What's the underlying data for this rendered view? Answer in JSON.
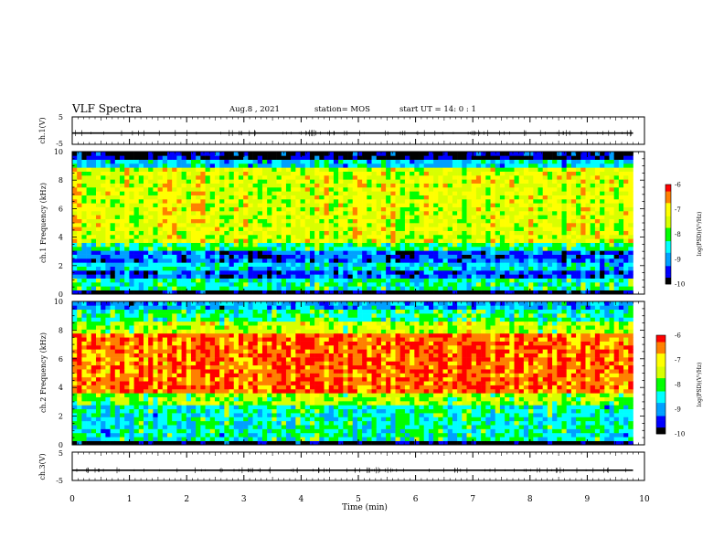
{
  "header": {
    "title": "VLF Spectra",
    "date": "Aug.8 , 2021",
    "station": "station= MOS",
    "start": "start UT =  14: 0 : 1"
  },
  "colors": {
    "colormap": [
      "#000000",
      "#0000ff",
      "#00a0ff",
      "#00ffff",
      "#00ff00",
      "#d8ff00",
      "#ffff00",
      "#ff8000",
      "#ff0000",
      "#ffffff"
    ],
    "axis": "#000000"
  },
  "chart_data": [
    {
      "type": "line",
      "name": "ch1-waveform",
      "ylabel": "ch.1(V)",
      "ylim": [
        -5,
        5
      ],
      "yticks": [
        "5",
        "-5"
      ],
      "trace_level": -0.9
    },
    {
      "type": "heatmap",
      "name": "ch1-spectrogram",
      "ylabel": "ch.1 Frequency (kHz)",
      "ylim": [
        0,
        10
      ],
      "yticks": [
        "0",
        "2",
        "4",
        "6",
        "8",
        "10"
      ],
      "xlim": [
        0,
        10
      ],
      "bands": [
        {
          "from": 0,
          "to": 0.4,
          "level": -10
        },
        {
          "from": 0.4,
          "to": 1.1,
          "level": -8.3
        },
        {
          "from": 1.1,
          "to": 1.8,
          "level": -9.3
        },
        {
          "from": 1.8,
          "to": 2.2,
          "level": -8.6
        },
        {
          "from": 2.2,
          "to": 3.0,
          "level": -9.2
        },
        {
          "from": 3.0,
          "to": 3.5,
          "level": -8.2
        },
        {
          "from": 3.5,
          "to": 9.0,
          "level": -7.3
        },
        {
          "from": 9.0,
          "to": 9.5,
          "level": -8.6
        },
        {
          "from": 9.5,
          "to": 10,
          "level": -9.8
        }
      ],
      "colorbar": {
        "label": "log(PSD)(V²/Hz)",
        "ticks": [
          "-6",
          "-7",
          "-8",
          "-9",
          "-10"
        ],
        "range": [
          -10,
          -6
        ]
      }
    },
    {
      "type": "heatmap",
      "name": "ch2-spectrogram",
      "ylabel": "ch.2 Frequency (kHz)",
      "ylim": [
        0,
        10
      ],
      "yticks": [
        "0",
        "2",
        "4",
        "6",
        "8",
        "10"
      ],
      "xlim": [
        0,
        10
      ],
      "bands": [
        {
          "from": 0,
          "to": 0.3,
          "level": -10
        },
        {
          "from": 0.3,
          "to": 2.8,
          "level": -8.4
        },
        {
          "from": 2.8,
          "to": 3.5,
          "level": -7.7
        },
        {
          "from": 3.5,
          "to": 7.8,
          "level": -6.4
        },
        {
          "from": 7.8,
          "to": 8.6,
          "level": -7.5
        },
        {
          "from": 8.6,
          "to": 9.5,
          "level": -8.2
        },
        {
          "from": 9.5,
          "to": 10,
          "level": -8.9
        }
      ],
      "colorbar": {
        "label": "log(PSD)(V²/Hz)",
        "ticks": [
          "-6",
          "-7",
          "-8",
          "-9",
          "-10"
        ],
        "range": [
          -10,
          -6
        ]
      }
    },
    {
      "type": "line",
      "name": "ch3-waveform",
      "ylabel": "ch.3(V)",
      "ylim": [
        -5,
        5
      ],
      "yticks": [
        "5",
        "-5"
      ],
      "trace_level": -1.4
    }
  ],
  "xaxis": {
    "label": "Time (min)",
    "range": [
      0,
      10
    ],
    "data_end": 9.8,
    "ticks": [
      "0",
      "1",
      "2",
      "3",
      "4",
      "5",
      "6",
      "7",
      "8",
      "9",
      "10"
    ]
  }
}
